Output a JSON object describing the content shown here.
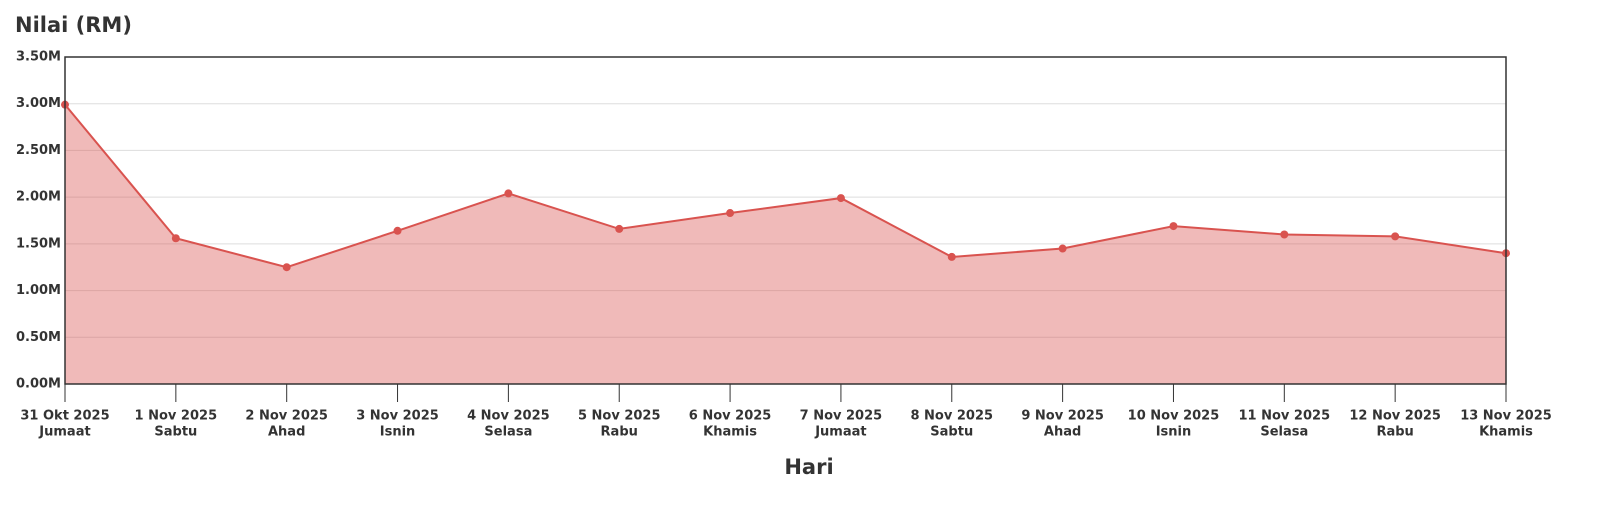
{
  "chart_data": {
    "type": "area",
    "title": "Nilai (RM)",
    "x_label": "Hari",
    "categories": [
      [
        "31 Okt 2025",
        "Jumaat"
      ],
      [
        "1 Nov 2025",
        "Sabtu"
      ],
      [
        "2 Nov 2025",
        "Ahad"
      ],
      [
        "3 Nov 2025",
        "Isnin"
      ],
      [
        "4 Nov 2025",
        "Selasa"
      ],
      [
        "5 Nov 2025",
        "Rabu"
      ],
      [
        "6 Nov 2025",
        "Khamis"
      ],
      [
        "7 Nov 2025",
        "Jumaat"
      ],
      [
        "8 Nov 2025",
        "Sabtu"
      ],
      [
        "9 Nov 2025",
        "Ahad"
      ],
      [
        "10 Nov 2025",
        "Isnin"
      ],
      [
        "11 Nov 2025",
        "Selasa"
      ],
      [
        "12 Nov 2025",
        "Rabu"
      ],
      [
        "13 Nov 2025",
        "Khamis"
      ]
    ],
    "values": [
      2990000,
      1560000,
      1250000,
      1640000,
      2040000,
      1660000,
      1830000,
      1990000,
      1360000,
      1450000,
      1690000,
      1600000,
      1580000,
      1400000
    ],
    "color": "#d9534f",
    "ylim": [
      0,
      3500000
    ],
    "yticks": [
      {
        "value": 0,
        "label": "0.00M"
      },
      {
        "value": 500000,
        "label": "0.50M"
      },
      {
        "value": 1000000,
        "label": "1.00M"
      },
      {
        "value": 1500000,
        "label": "1.50M"
      },
      {
        "value": 2000000,
        "label": "2.00M"
      },
      {
        "value": 2500000,
        "label": "2.50M"
      },
      {
        "value": 3000000,
        "label": "3.00M"
      },
      {
        "value": 3500000,
        "label": "3.50M"
      }
    ],
    "grid": true
  }
}
